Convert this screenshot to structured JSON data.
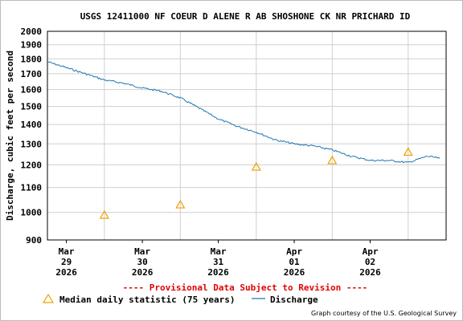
{
  "chart_data": {
    "type": "line",
    "title": "USGS 12411000 NF COEUR D ALENE R AB SHOSHONE CK NR PRICHARD ID",
    "xlabel": "",
    "ylabel": "Discharge, cubic feet per second",
    "y_scale": "log",
    "ylim": [
      900,
      2000
    ],
    "xlim": [
      "2026-03-28T18:00",
      "2026-04-03T00:00"
    ],
    "y_ticks": [
      "900",
      "1000",
      "1100",
      "1200",
      "1300",
      "1400",
      "1500",
      "1600",
      "1700",
      "1800",
      "1900",
      "2000"
    ],
    "x_ticks": [
      {
        "x": "2026-03-29T00:00",
        "label": [
          "Mar",
          "29",
          "2026"
        ]
      },
      {
        "x": "2026-03-30T00:00",
        "label": [
          "Mar",
          "30",
          "2026"
        ]
      },
      {
        "x": "2026-03-31T00:00",
        "label": [
          "Mar",
          "31",
          "2026"
        ]
      },
      {
        "x": "2026-04-01T00:00",
        "label": [
          "Apr",
          "01",
          "2026"
        ]
      },
      {
        "x": "2026-04-02T00:00",
        "label": [
          "Apr",
          "02",
          "2026"
        ]
      }
    ],
    "grid": true,
    "series": [
      {
        "name": "Discharge",
        "type": "line",
        "color": "#1f77b4",
        "points": [
          {
            "x": "2026-03-28T18:00",
            "y": 1780
          },
          {
            "x": "2026-03-29T00:00",
            "y": 1740
          },
          {
            "x": "2026-03-29T06:00",
            "y": 1700
          },
          {
            "x": "2026-03-29T12:00",
            "y": 1660
          },
          {
            "x": "2026-03-29T18:00",
            "y": 1640
          },
          {
            "x": "2026-03-30T00:00",
            "y": 1610
          },
          {
            "x": "2026-03-30T06:00",
            "y": 1590
          },
          {
            "x": "2026-03-30T12:00",
            "y": 1550
          },
          {
            "x": "2026-03-30T18:00",
            "y": 1490
          },
          {
            "x": "2026-03-31T00:00",
            "y": 1430
          },
          {
            "x": "2026-03-31T06:00",
            "y": 1390
          },
          {
            "x": "2026-03-31T12:00",
            "y": 1360
          },
          {
            "x": "2026-03-31T18:00",
            "y": 1320
          },
          {
            "x": "2026-04-01T00:00",
            "y": 1300
          },
          {
            "x": "2026-04-01T06:00",
            "y": 1290
          },
          {
            "x": "2026-04-01T12:00",
            "y": 1270
          },
          {
            "x": "2026-04-01T18:00",
            "y": 1240
          },
          {
            "x": "2026-04-02T00:00",
            "y": 1220
          },
          {
            "x": "2026-04-02T06:00",
            "y": 1220
          },
          {
            "x": "2026-04-02T12:00",
            "y": 1210
          },
          {
            "x": "2026-04-02T18:00",
            "y": 1240
          },
          {
            "x": "2026-04-02T22:00",
            "y": 1230
          }
        ]
      },
      {
        "name": "Median daily statistic (75 years)",
        "type": "scatter",
        "marker": "triangle",
        "color": "#f0a000",
        "points": [
          {
            "x": "2026-03-29T12:00",
            "y": 990
          },
          {
            "x": "2026-03-30T12:00",
            "y": 1030
          },
          {
            "x": "2026-03-31T12:00",
            "y": 1190
          },
          {
            "x": "2026-04-01T12:00",
            "y": 1220
          },
          {
            "x": "2026-04-02T12:00",
            "y": 1260
          }
        ]
      }
    ],
    "legend": {
      "placement": "bottom",
      "entries": [
        "Median daily statistic (75 years)",
        "Discharge"
      ]
    },
    "annotations": [
      "---- Provisional Data Subject to Revision ----",
      "Graph courtesy of the U.S. Geological Survey"
    ]
  },
  "colors": {
    "provisional": "#e00000",
    "discharge": "#1f77b4",
    "median": "#f0a000",
    "grid": "#cfcfcf",
    "axis": "#000000"
  }
}
